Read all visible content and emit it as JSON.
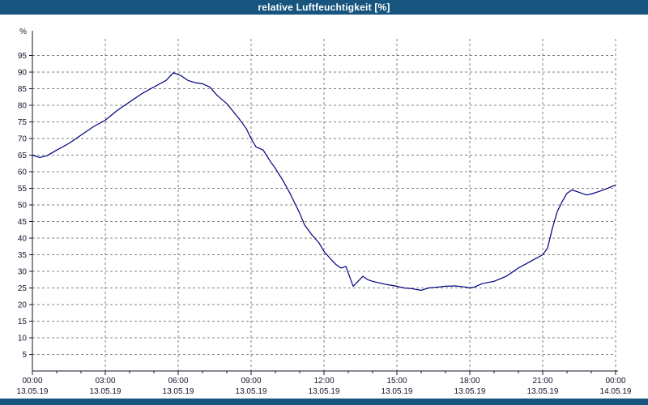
{
  "title_bar": {
    "title": "relative Luftfeuchtigkeit [%]"
  },
  "colors": {
    "title_bg": "#17557F",
    "bottom_bg": "#17557F",
    "line": "#000080",
    "grid": "#808080",
    "axis": "#14142b",
    "label": "#14142b"
  },
  "chart_data": {
    "type": "line",
    "title": "relative Luftfeuchtigkeit [%]",
    "xlabel": "",
    "ylabel": "%",
    "ylim": [
      0,
      100
    ],
    "y_ticks": [
      5,
      10,
      15,
      20,
      25,
      30,
      35,
      40,
      45,
      50,
      55,
      60,
      65,
      70,
      75,
      80,
      85,
      90,
      95
    ],
    "x_range_hours": [
      0,
      24
    ],
    "x_minor_step_hours": 1,
    "grid": "dashed",
    "legend": "none",
    "x_major_ticks": [
      {
        "hour": 0,
        "time": "00:00",
        "date": "13.05.19"
      },
      {
        "hour": 3,
        "time": "03:00",
        "date": "13.05.19"
      },
      {
        "hour": 6,
        "time": "06:00",
        "date": "13.05.19"
      },
      {
        "hour": 9,
        "time": "09:00",
        "date": "13.05.19"
      },
      {
        "hour": 12,
        "time": "12:00",
        "date": "13.05.19"
      },
      {
        "hour": 15,
        "time": "15:00",
        "date": "13.05.19"
      },
      {
        "hour": 18,
        "time": "18:00",
        "date": "13.05.19"
      },
      {
        "hour": 21,
        "time": "21:00",
        "date": "13.05.19"
      },
      {
        "hour": 24,
        "time": "00:00",
        "date": "14.05.19"
      }
    ],
    "series": [
      {
        "name": "relative Luftfeuchtigkeit",
        "color": "#000080",
        "points": [
          [
            0,
            65
          ],
          [
            0.3,
            64.3
          ],
          [
            0.6,
            64.8
          ],
          [
            1,
            66.5
          ],
          [
            1.5,
            68.5
          ],
          [
            2,
            71
          ],
          [
            2.5,
            73.5
          ],
          [
            3,
            75.5
          ],
          [
            3.5,
            78.5
          ],
          [
            4,
            81
          ],
          [
            4.5,
            83.5
          ],
          [
            5,
            85.5
          ],
          [
            5.5,
            87.5
          ],
          [
            5.8,
            89.8
          ],
          [
            6.1,
            89
          ],
          [
            6.4,
            87.5
          ],
          [
            6.7,
            86.8
          ],
          [
            7,
            86.5
          ],
          [
            7.3,
            85.5
          ],
          [
            7.6,
            83
          ],
          [
            8,
            80.5
          ],
          [
            8.5,
            76
          ],
          [
            8.8,
            73
          ],
          [
            9,
            70
          ],
          [
            9.2,
            67.5
          ],
          [
            9.5,
            66.5
          ],
          [
            9.8,
            63
          ],
          [
            10,
            61
          ],
          [
            10.3,
            57.5
          ],
          [
            10.6,
            53.5
          ],
          [
            11,
            47.5
          ],
          [
            11.2,
            44
          ],
          [
            11.5,
            41
          ],
          [
            11.8,
            38.5
          ],
          [
            12,
            36
          ],
          [
            12.3,
            33.5
          ],
          [
            12.5,
            32
          ],
          [
            12.7,
            31
          ],
          [
            12.9,
            31.5
          ],
          [
            13,
            29.5
          ],
          [
            13.2,
            25.5
          ],
          [
            13.4,
            27
          ],
          [
            13.6,
            28.5
          ],
          [
            13.8,
            27.5
          ],
          [
            14,
            27
          ],
          [
            14.3,
            26.5
          ],
          [
            14.6,
            26
          ],
          [
            15,
            25.5
          ],
          [
            15.3,
            25
          ],
          [
            15.6,
            24.8
          ],
          [
            16,
            24.3
          ],
          [
            16.3,
            25
          ],
          [
            16.6,
            25.2
          ],
          [
            17,
            25.5
          ],
          [
            17.4,
            25.6
          ],
          [
            17.8,
            25.3
          ],
          [
            18,
            25
          ],
          [
            18.2,
            25.3
          ],
          [
            18.5,
            26.3
          ],
          [
            19,
            27
          ],
          [
            19.5,
            28.5
          ],
          [
            20,
            31
          ],
          [
            20.5,
            33
          ],
          [
            21,
            35
          ],
          [
            21.2,
            37
          ],
          [
            21.4,
            43
          ],
          [
            21.6,
            48
          ],
          [
            21.8,
            51
          ],
          [
            22,
            53.5
          ],
          [
            22.2,
            54.5
          ],
          [
            22.5,
            53.8
          ],
          [
            22.8,
            53
          ],
          [
            23,
            53.3
          ],
          [
            23.3,
            54
          ],
          [
            23.6,
            54.8
          ],
          [
            24,
            56
          ]
        ]
      }
    ]
  }
}
